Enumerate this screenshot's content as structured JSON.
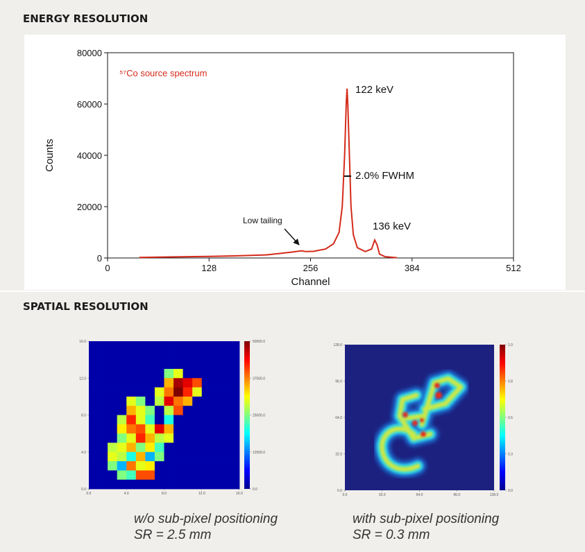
{
  "headings": [
    "ENERGY RESOLUTION",
    "SPATIAL RESOLUTION"
  ],
  "captions": [
    [
      "w/o sub-pixel positioning",
      "SR = 2.5 mm"
    ],
    [
      "with sub-pixel positioning",
      "SR = 0.3 mm"
    ]
  ],
  "chart_data": [
    {
      "type": "line",
      "x_label": "Channel",
      "y_label": "Counts",
      "color": "#d42a1a",
      "annotations": [
        "⁵⁷Co source spectrum",
        "122 keV",
        "2.0% FWHM",
        "136 keV",
        "Low tailing"
      ],
      "x": [
        40,
        80,
        128,
        160,
        200,
        230,
        245,
        250,
        260,
        275,
        285,
        292,
        296,
        299,
        301,
        302,
        303,
        305,
        307,
        310,
        315,
        325,
        333,
        337,
        340,
        343,
        350,
        365
      ],
      "values": [
        200,
        400,
        600,
        800,
        1200,
        2200,
        2800,
        2500,
        2600,
        3500,
        5500,
        10000,
        20000,
        40000,
        60000,
        66000,
        60000,
        40000,
        20000,
        9000,
        4000,
        2500,
        3500,
        7000,
        5000,
        1500,
        500,
        100
      ],
      "xlim": [
        0,
        512
      ],
      "xticks": [
        0,
        128,
        256,
        384,
        512
      ],
      "ylim": [
        0,
        80000
      ],
      "yticks": [
        0,
        20000,
        40000,
        60000,
        80000
      ]
    },
    {
      "type": "heatmap",
      "xlim": [
        0,
        16
      ],
      "ylim": [
        0,
        16
      ],
      "clim": [
        0,
        50000
      ],
      "xticks": [
        {
          "value": 0,
          "label": "0.0"
        },
        {
          "value": 4,
          "label": "4.0"
        },
        {
          "value": 8,
          "label": "8.0"
        },
        {
          "value": 12,
          "label": "12.0"
        },
        {
          "value": 16,
          "label": "16.0"
        }
      ],
      "yticks": [
        {
          "value": 0,
          "label": "0.0"
        },
        {
          "value": 4,
          "label": "4.0"
        },
        {
          "value": 8,
          "label": "8.0"
        },
        {
          "value": 12,
          "label": "12.0"
        },
        {
          "value": 16,
          "label": "16.0"
        }
      ],
      "cticks": [
        {
          "value": 0,
          "label": "0.0"
        },
        {
          "value": 12500,
          "label": "12500.0"
        },
        {
          "value": 25000,
          "label": "25000.0"
        },
        {
          "value": 37500,
          "label": "37500.0"
        },
        {
          "value": 50000,
          "label": "50000.0"
        }
      ],
      "values": [
        [
          2000,
          2000,
          2000,
          2000,
          2000,
          2000,
          2000,
          2000,
          2000,
          2000,
          2000,
          2000,
          2000,
          2000,
          2000,
          2000
        ],
        [
          2000,
          2000,
          2000,
          2000,
          2000,
          2000,
          2000,
          2000,
          2000,
          2000,
          2000,
          2000,
          2000,
          2000,
          2000,
          2000
        ],
        [
          2000,
          2000,
          2000,
          2000,
          2000,
          2000,
          2000,
          2000,
          2000,
          2000,
          2000,
          2000,
          2000,
          2000,
          2000,
          2000
        ],
        [
          2000,
          2000,
          2000,
          2000,
          2000,
          2000,
          2000,
          2000,
          25000,
          30000,
          2000,
          2000,
          2000,
          2000,
          2000,
          2000
        ],
        [
          2000,
          2000,
          2000,
          2000,
          2000,
          2000,
          2000,
          2000,
          35000,
          48000,
          45000,
          40000,
          2000,
          2000,
          2000,
          2000
        ],
        [
          2000,
          2000,
          2000,
          2000,
          2000,
          2000,
          2000,
          30000,
          38000,
          50000,
          42000,
          30000,
          2000,
          2000,
          2000,
          2000
        ],
        [
          2000,
          2000,
          2000,
          2000,
          30000,
          25000,
          2000,
          28000,
          45000,
          38000,
          35000,
          2000,
          2000,
          2000,
          2000,
          2000
        ],
        [
          2000,
          2000,
          2000,
          2000,
          35000,
          30000,
          25000,
          2000,
          28000,
          40000,
          2000,
          2000,
          2000,
          2000,
          2000,
          2000
        ],
        [
          2000,
          2000,
          2000,
          28000,
          42000,
          30000,
          22000,
          2000,
          20000,
          2000,
          2000,
          2000,
          2000,
          2000,
          2000,
          2000
        ],
        [
          2000,
          2000,
          2000,
          32000,
          38000,
          40000,
          30000,
          45000,
          35000,
          2000,
          2000,
          2000,
          2000,
          2000,
          2000,
          2000
        ],
        [
          2000,
          2000,
          2000,
          25000,
          30000,
          42000,
          35000,
          28000,
          30000,
          2000,
          2000,
          2000,
          2000,
          2000,
          2000,
          2000
        ],
        [
          2000,
          2000,
          28000,
          30000,
          35000,
          25000,
          32000,
          22000,
          2000,
          2000,
          2000,
          2000,
          2000,
          2000,
          2000,
          2000
        ],
        [
          2000,
          2000,
          30000,
          28000,
          20000,
          35000,
          15000,
          25000,
          2000,
          2000,
          2000,
          2000,
          2000,
          2000,
          2000,
          2000
        ],
        [
          2000,
          2000,
          25000,
          15000,
          38000,
          30000,
          32000,
          2000,
          2000,
          2000,
          2000,
          2000,
          2000,
          2000,
          2000,
          2000
        ],
        [
          2000,
          2000,
          2000,
          25000,
          22000,
          40000,
          40000,
          2000,
          2000,
          2000,
          2000,
          2000,
          2000,
          2000,
          2000,
          2000
        ],
        [
          2000,
          2000,
          2000,
          2000,
          2000,
          2000,
          2000,
          2000,
          2000,
          2000,
          2000,
          2000,
          2000,
          2000,
          2000,
          2000
        ]
      ]
    },
    {
      "type": "heatmap",
      "xlim": [
        0,
        128
      ],
      "ylim": [
        0,
        128
      ],
      "clim": [
        0,
        1
      ],
      "xticks": [
        {
          "value": 0,
          "label": "0.0"
        },
        {
          "value": 32,
          "label": "32.0"
        },
        {
          "value": 64,
          "label": "64.0"
        },
        {
          "value": 96,
          "label": "96.0"
        },
        {
          "value": 128,
          "label": "128.0"
        }
      ],
      "yticks": [
        {
          "value": 0,
          "label": "0.0"
        },
        {
          "value": 32,
          "label": "32.0"
        },
        {
          "value": 64,
          "label": "64.0"
        },
        {
          "value": 96,
          "label": "96.0"
        },
        {
          "value": 128,
          "label": "128.0"
        }
      ],
      "cticks": [
        {
          "value": 0,
          "label": "0.0"
        },
        {
          "value": 0.25,
          "label": "0.3"
        },
        {
          "value": 0.5,
          "label": "0.5"
        },
        {
          "value": 0.75,
          "label": "0.8"
        },
        {
          "value": 1,
          "label": "1.0"
        }
      ]
    }
  ]
}
